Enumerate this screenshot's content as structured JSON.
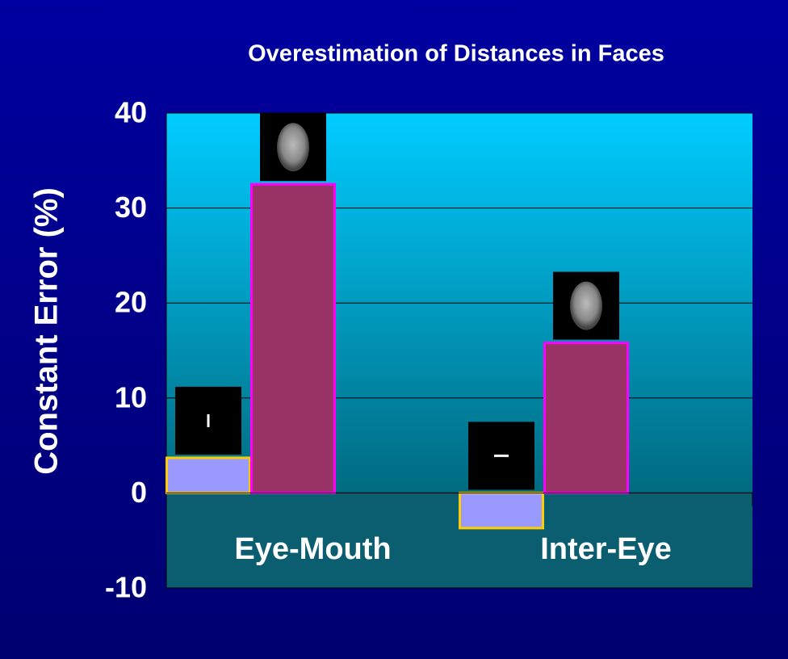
{
  "chart_data": {
    "type": "bar",
    "title": "Overestimation of Distances in Faces",
    "ylabel": "Constant Error (%)",
    "categories": [
      "Eye-Mouth",
      "Inter-Eye"
    ],
    "series": [
      {
        "color": "#9999ff",
        "edgecolor": "#ffcc00",
        "values": [
          3.7,
          -3.7
        ]
      },
      {
        "color": "#993366",
        "edgecolor": "#ff00ff",
        "values": [
          32.5,
          15.8
        ]
      }
    ],
    "ylim": [
      -10,
      40
    ],
    "yticks": [
      -10,
      0,
      10,
      20,
      30,
      40
    ],
    "grid": true
  }
}
